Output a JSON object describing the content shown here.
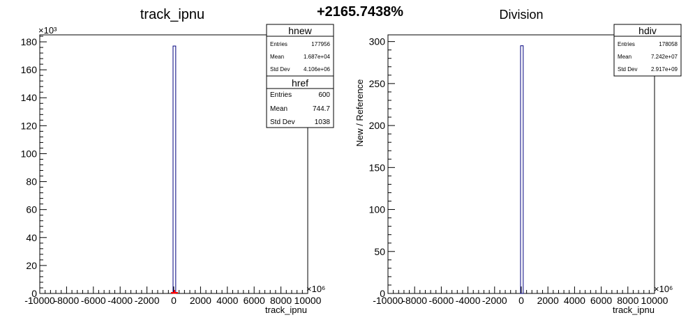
{
  "figure": {
    "headline": "+2165.7438%"
  },
  "left_panel": {
    "title": "track_ipnu",
    "xlabel": "track_ipnu",
    "y_multiplier_label": "×10³",
    "x_multiplier_label": "×10⁶",
    "stats_new": {
      "name": "hnew",
      "rows": [
        {
          "label": "Entries",
          "value": "177956"
        },
        {
          "label": "Mean",
          "value": "1.687e+04"
        },
        {
          "label": "Std Dev",
          "value": "4.106e+06"
        }
      ]
    },
    "stats_ref": {
      "name": "href",
      "rows": [
        {
          "label": "Entries",
          "value": "600"
        },
        {
          "label": "Mean",
          "value": "744.7"
        },
        {
          "label": "Std Dev",
          "value": "1038"
        }
      ]
    }
  },
  "right_panel": {
    "title": "Division",
    "xlabel": "track_ipnu",
    "ylabel": "New / Reference",
    "x_multiplier_label": "×10⁶",
    "stats": {
      "name": "hdiv",
      "rows": [
        {
          "label": "Entries",
          "value": "178058"
        },
        {
          "label": "Mean",
          "value": "7.242e+07"
        },
        {
          "label": "Std Dev",
          "value": "2.917e+09"
        }
      ]
    }
  },
  "colors": {
    "new_hist": "#00007f",
    "ref_hist": "#ff0000",
    "frame": "#000000"
  },
  "chart_data": [
    {
      "type": "bar",
      "title": "track_ipnu",
      "xlabel": "track_ipnu",
      "ylabel": "",
      "x_scale": "×10⁶",
      "y_scale": "×10³",
      "xlim": [
        -10000,
        10000
      ],
      "ylim": [
        0,
        185
      ],
      "x_ticks": [
        -10000,
        -8000,
        -6000,
        -4000,
        -2000,
        0,
        2000,
        4000,
        6000,
        8000,
        10000
      ],
      "y_ticks": [
        0,
        20,
        40,
        60,
        80,
        100,
        120,
        140,
        160,
        180
      ],
      "series": [
        {
          "name": "hnew",
          "bins": [
            {
              "x0": 0,
              "x1": 200,
              "value": 177
            }
          ]
        },
        {
          "name": "href",
          "bins": [
            {
              "x0": 0,
              "x1": 200,
              "value": 0.6
            }
          ]
        }
      ]
    },
    {
      "type": "bar",
      "title": "Division",
      "xlabel": "track_ipnu",
      "ylabel": "New / Reference",
      "x_scale": "×10⁶",
      "xlim": [
        -10000,
        10000
      ],
      "ylim": [
        0,
        308
      ],
      "x_ticks": [
        -10000,
        -8000,
        -6000,
        -4000,
        -2000,
        0,
        2000,
        4000,
        6000,
        8000,
        10000
      ],
      "y_ticks": [
        0,
        50,
        100,
        150,
        200,
        250,
        300
      ],
      "series": [
        {
          "name": "hdiv",
          "bins": [
            {
              "x0": 0,
              "x1": 200,
              "value": 295
            }
          ]
        }
      ]
    }
  ]
}
